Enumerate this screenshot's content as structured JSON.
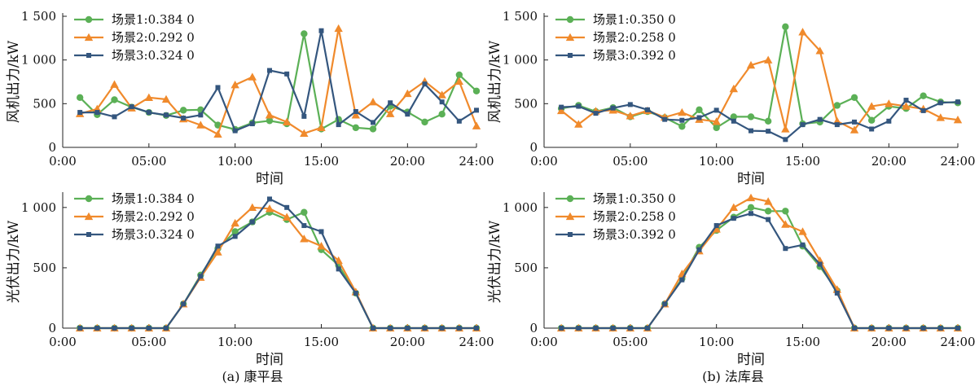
{
  "figure": {
    "captions": [
      "(a) 康平县",
      "(b) 法库县"
    ]
  },
  "chart_data": [
    {
      "type": "line",
      "panel": "a-top",
      "xlabel": "时间",
      "ylabel": "风机出力/kW",
      "ylim": [
        0,
        1500
      ],
      "yticks": [
        0,
        500,
        1000,
        1500
      ],
      "ytick_labels": [
        "0",
        "500",
        "1 000",
        "1 500"
      ],
      "xlim": [
        "0:00",
        "24:00"
      ],
      "xtick_labels": [
        "0:00",
        "05:00",
        "10:00",
        "15:00",
        "20:00",
        "24:00"
      ],
      "x": [
        "1:00",
        "2:00",
        "3:00",
        "4:00",
        "5:00",
        "6:00",
        "7:00",
        "8:00",
        "9:00",
        "10:00",
        "11:00",
        "12:00",
        "13:00",
        "14:00",
        "15:00",
        "16:00",
        "17:00",
        "18:00",
        "19:00",
        "20:00",
        "21:00",
        "22:00",
        "23:00",
        "24:00"
      ],
      "legend_position": "top-left",
      "series": [
        {
          "name": "场景1:0.384 0",
          "color": "#5bb056",
          "marker": "circle",
          "values": [
            570,
            375,
            545,
            460,
            400,
            365,
            425,
            430,
            255,
            205,
            280,
            305,
            270,
            1300,
            210,
            320,
            225,
            210,
            470,
            405,
            290,
            380,
            830,
            645
          ]
        },
        {
          "name": "场景2:0.292 0",
          "color": "#f08a2c",
          "marker": "triangle",
          "values": [
            385,
            440,
            720,
            450,
            570,
            550,
            325,
            255,
            150,
            715,
            805,
            370,
            290,
            160,
            225,
            1360,
            370,
            520,
            385,
            615,
            755,
            600,
            755,
            245
          ]
        },
        {
          "name": "场景3:0.324 0",
          "color": "#34567e",
          "marker": "square",
          "values": [
            400,
            400,
            350,
            465,
            400,
            370,
            335,
            370,
            685,
            190,
            270,
            880,
            840,
            355,
            1335,
            260,
            410,
            285,
            510,
            380,
            725,
            520,
            300,
            425
          ]
        }
      ]
    },
    {
      "type": "line",
      "panel": "b-top",
      "xlabel": "时间",
      "ylabel": "风机出力/kW",
      "ylim": [
        0,
        1500
      ],
      "yticks": [
        0,
        500,
        1000,
        1500
      ],
      "ytick_labels": [
        "0",
        "500",
        "1 000",
        "1 500"
      ],
      "xlim": [
        "0:00",
        "24:00"
      ],
      "xtick_labels": [
        "0:00",
        "05:00",
        "10:00",
        "15:00",
        "20:00",
        "24:00"
      ],
      "x": [
        "1:00",
        "2:00",
        "3:00",
        "4:00",
        "5:00",
        "6:00",
        "7:00",
        "8:00",
        "9:00",
        "10:00",
        "11:00",
        "12:00",
        "13:00",
        "14:00",
        "15:00",
        "16:00",
        "17:00",
        "18:00",
        "19:00",
        "20:00",
        "21:00",
        "22:00",
        "23:00",
        "24:00"
      ],
      "legend_position": "top-left",
      "series": [
        {
          "name": "场景1:0.350 0",
          "color": "#5bb056",
          "marker": "circle",
          "values": [
            445,
            480,
            410,
            455,
            350,
            410,
            340,
            240,
            430,
            225,
            350,
            350,
            300,
            1380,
            270,
            290,
            480,
            570,
            310,
            470,
            445,
            590,
            520,
            510
          ]
        },
        {
          "name": "场景2:0.258 0",
          "color": "#f08a2c",
          "marker": "triangle",
          "values": [
            420,
            265,
            415,
            425,
            360,
            420,
            345,
            400,
            320,
            295,
            670,
            940,
            1000,
            210,
            1320,
            1105,
            300,
            200,
            470,
            500,
            470,
            440,
            340,
            315
          ]
        },
        {
          "name": "场景3:0.392 0",
          "color": "#34567e",
          "marker": "square",
          "values": [
            460,
            470,
            390,
            450,
            490,
            430,
            320,
            310,
            340,
            425,
            300,
            190,
            185,
            90,
            260,
            320,
            260,
            290,
            210,
            300,
            540,
            420,
            510,
            520
          ]
        }
      ]
    },
    {
      "type": "line",
      "panel": "a-bottom",
      "xlabel": "时间",
      "ylabel": "光伏出力/kW",
      "ylim": [
        0,
        1100
      ],
      "yticks": [
        0,
        500,
        1000
      ],
      "ytick_labels": [
        "0",
        "500",
        "1 000"
      ],
      "xlim": [
        "0:00",
        "24:00"
      ],
      "xtick_labels": [
        "0:00",
        "05:00",
        "10:00",
        "15:00",
        "20:00",
        "24:00"
      ],
      "x": [
        "1:00",
        "2:00",
        "3:00",
        "4:00",
        "5:00",
        "6:00",
        "7:00",
        "8:00",
        "9:00",
        "10:00",
        "11:00",
        "12:00",
        "13:00",
        "14:00",
        "15:00",
        "16:00",
        "17:00",
        "18:00",
        "19:00",
        "20:00",
        "21:00",
        "22:00",
        "23:00",
        "24:00"
      ],
      "legend_position": "top-left",
      "series": [
        {
          "name": "场景1:0.384 0",
          "color": "#5bb056",
          "marker": "circle",
          "values": [
            0,
            0,
            0,
            0,
            0,
            0,
            200,
            440,
            660,
            800,
            880,
            960,
            900,
            960,
            650,
            520,
            290,
            0,
            0,
            0,
            0,
            0,
            0,
            0
          ]
        },
        {
          "name": "场景2:0.292 0",
          "color": "#f08a2c",
          "marker": "triangle",
          "values": [
            0,
            0,
            0,
            0,
            0,
            0,
            200,
            420,
            630,
            870,
            1000,
            990,
            920,
            740,
            680,
            560,
            300,
            0,
            0,
            0,
            0,
            0,
            0,
            0
          ]
        },
        {
          "name": "场景3:0.324 0",
          "color": "#34567e",
          "marker": "square",
          "values": [
            0,
            0,
            0,
            0,
            0,
            0,
            200,
            430,
            680,
            760,
            880,
            1070,
            1000,
            850,
            800,
            490,
            290,
            0,
            0,
            0,
            0,
            0,
            0,
            0
          ]
        }
      ]
    },
    {
      "type": "line",
      "panel": "b-bottom",
      "xlabel": "时间",
      "ylabel": "光伏出力/kW",
      "ylim": [
        0,
        1100
      ],
      "yticks": [
        0,
        500,
        1000
      ],
      "ytick_labels": [
        "0",
        "500",
        "1 000"
      ],
      "xlim": [
        "0:00",
        "24:00"
      ],
      "xtick_labels": [
        "0:00",
        "05:00",
        "10:00",
        "15:00",
        "20:00",
        "24:00"
      ],
      "x": [
        "1:00",
        "2:00",
        "3:00",
        "4:00",
        "5:00",
        "6:00",
        "7:00",
        "8:00",
        "9:00",
        "10:00",
        "11:00",
        "12:00",
        "13:00",
        "14:00",
        "15:00",
        "16:00",
        "17:00",
        "18:00",
        "19:00",
        "20:00",
        "21:00",
        "22:00",
        "23:00",
        "24:00"
      ],
      "legend_position": "top-left",
      "series": [
        {
          "name": "场景1:0.350 0",
          "color": "#5bb056",
          "marker": "circle",
          "values": [
            0,
            0,
            0,
            0,
            0,
            0,
            200,
            410,
            670,
            810,
            920,
            1000,
            970,
            970,
            680,
            510,
            310,
            0,
            0,
            0,
            0,
            0,
            0,
            0
          ]
        },
        {
          "name": "场景2:0.258 0",
          "color": "#f08a2c",
          "marker": "triangle",
          "values": [
            0,
            0,
            0,
            0,
            0,
            0,
            200,
            450,
            640,
            820,
            1000,
            1080,
            1050,
            860,
            800,
            560,
            320,
            0,
            0,
            0,
            0,
            0,
            0,
            0
          ]
        },
        {
          "name": "场景3:0.392 0",
          "color": "#34567e",
          "marker": "square",
          "values": [
            0,
            0,
            0,
            0,
            0,
            0,
            200,
            400,
            650,
            850,
            910,
            950,
            900,
            660,
            690,
            530,
            290,
            0,
            0,
            0,
            0,
            0,
            0,
            0
          ]
        }
      ]
    }
  ]
}
